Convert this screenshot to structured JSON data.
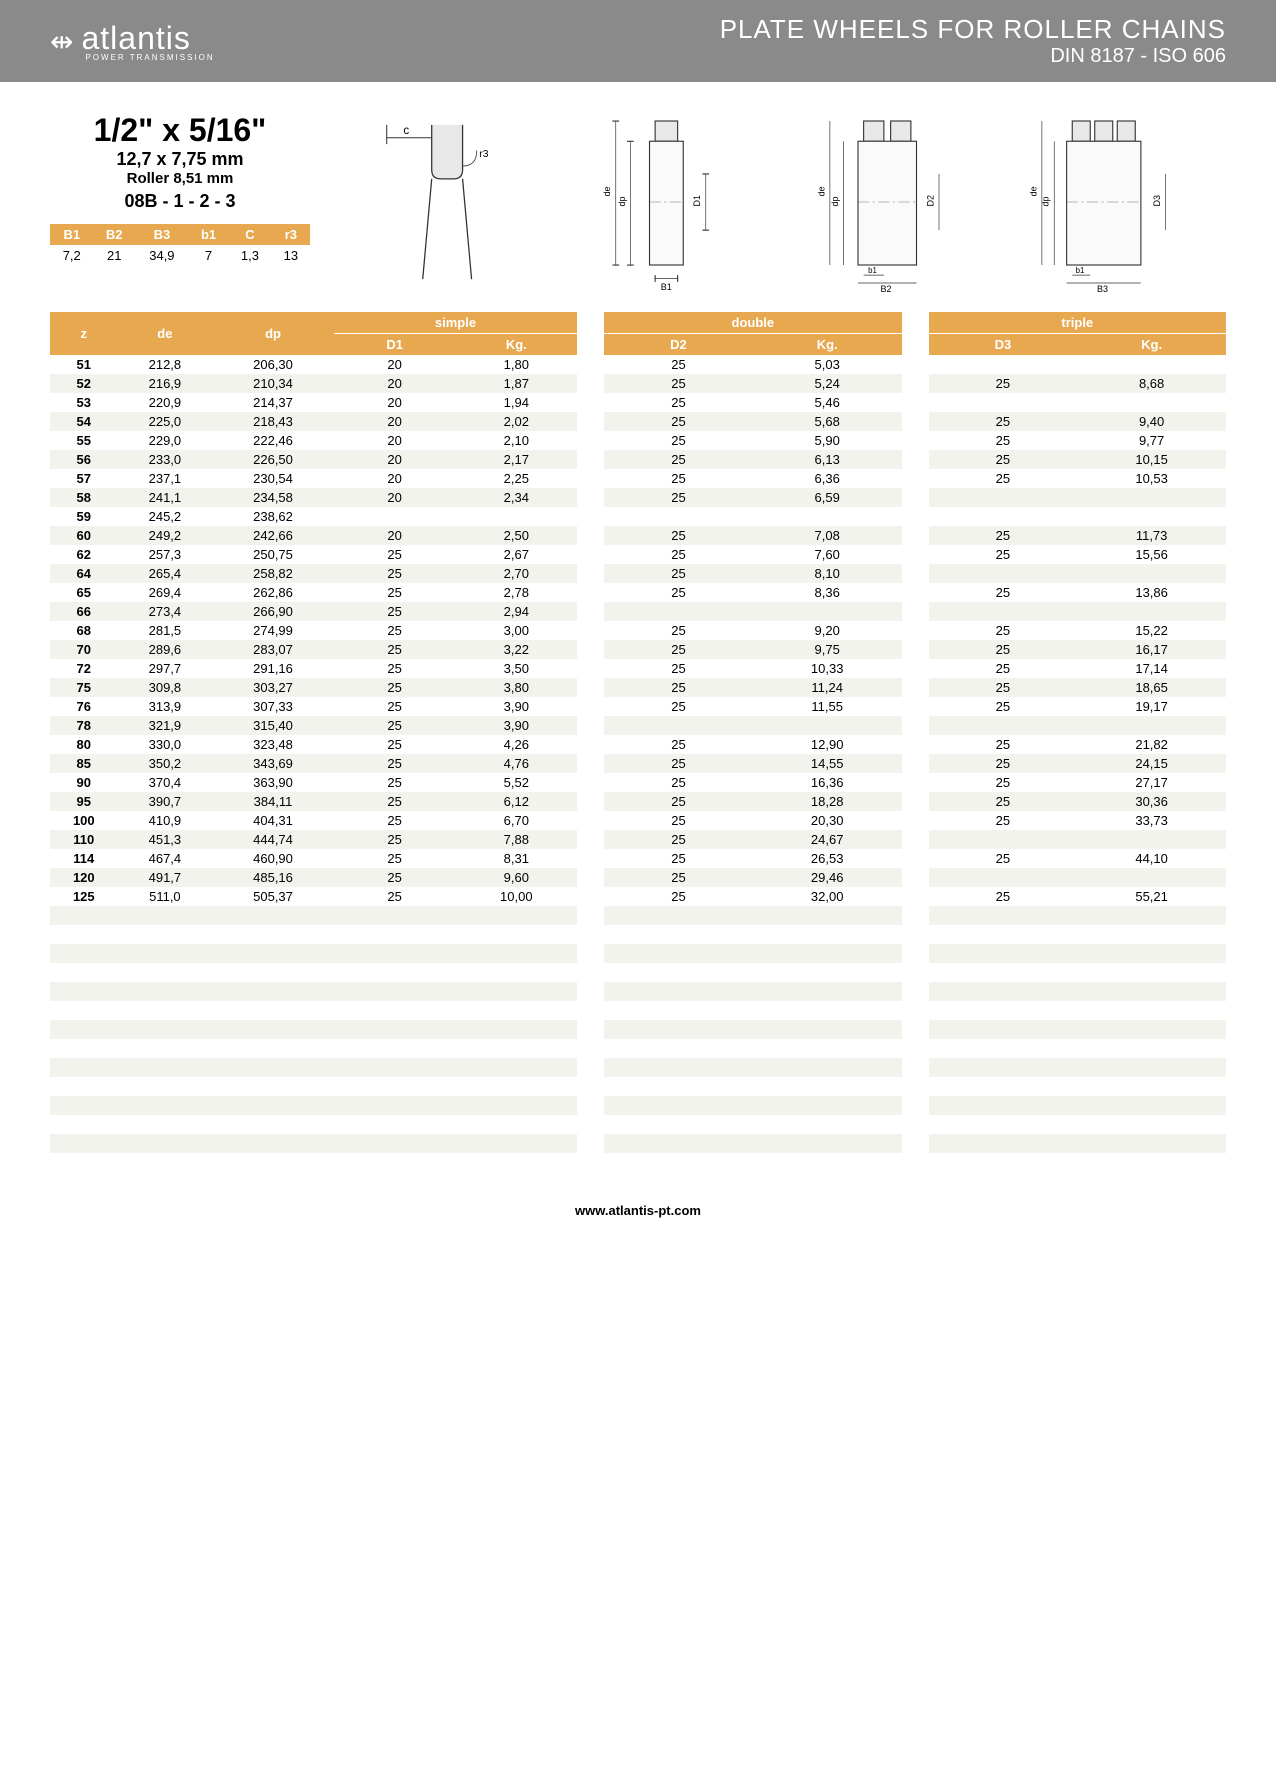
{
  "brand": {
    "name": "atlantis",
    "tagline": "POWER TRANSMISSION"
  },
  "header": {
    "title": "PLATE WHEELS FOR ROLLER CHAINS",
    "subtitle": "DIN 8187 - ISO 606"
  },
  "spec": {
    "main": "1/2\" x 5/16\"",
    "mm": "12,7 x 7,75 mm",
    "roller": "Roller 8,51 mm",
    "code": "08B - 1 - 2 - 3"
  },
  "dims": {
    "headers": [
      "B1",
      "B2",
      "B3",
      "b1",
      "C",
      "r3"
    ],
    "values": [
      "7,2",
      "21",
      "34,9",
      "7",
      "1,3",
      "13"
    ]
  },
  "diagram_labels": {
    "c": "c",
    "r3": "r3",
    "de": "de",
    "dp": "dp",
    "D1": "D1",
    "D2": "D2",
    "D3": "D3",
    "B1": "B1",
    "B2": "B2",
    "B3": "B3",
    "b1": "b1"
  },
  "table_headers": {
    "z": "z",
    "de": "de",
    "dp": "dp",
    "simple": "simple",
    "d1": "D1",
    "kg1": "Kg.",
    "double": "double",
    "d2": "D2",
    "kg2": "Kg.",
    "triple": "triple",
    "d3": "D3",
    "kg3": "Kg."
  },
  "rows": [
    {
      "z": "51",
      "de": "212,8",
      "dp": "206,30",
      "d1": "20",
      "kg1": "1,80",
      "d2": "25",
      "kg2": "5,03",
      "d3": "",
      "kg3": ""
    },
    {
      "z": "52",
      "de": "216,9",
      "dp": "210,34",
      "d1": "20",
      "kg1": "1,87",
      "d2": "25",
      "kg2": "5,24",
      "d3": "25",
      "kg3": "8,68"
    },
    {
      "z": "53",
      "de": "220,9",
      "dp": "214,37",
      "d1": "20",
      "kg1": "1,94",
      "d2": "25",
      "kg2": "5,46",
      "d3": "",
      "kg3": ""
    },
    {
      "z": "54",
      "de": "225,0",
      "dp": "218,43",
      "d1": "20",
      "kg1": "2,02",
      "d2": "25",
      "kg2": "5,68",
      "d3": "25",
      "kg3": "9,40"
    },
    {
      "z": "55",
      "de": "229,0",
      "dp": "222,46",
      "d1": "20",
      "kg1": "2,10",
      "d2": "25",
      "kg2": "5,90",
      "d3": "25",
      "kg3": "9,77"
    },
    {
      "z": "56",
      "de": "233,0",
      "dp": "226,50",
      "d1": "20",
      "kg1": "2,17",
      "d2": "25",
      "kg2": "6,13",
      "d3": "25",
      "kg3": "10,15"
    },
    {
      "z": "57",
      "de": "237,1",
      "dp": "230,54",
      "d1": "20",
      "kg1": "2,25",
      "d2": "25",
      "kg2": "6,36",
      "d3": "25",
      "kg3": "10,53"
    },
    {
      "z": "58",
      "de": "241,1",
      "dp": "234,58",
      "d1": "20",
      "kg1": "2,34",
      "d2": "25",
      "kg2": "6,59",
      "d3": "",
      "kg3": ""
    },
    {
      "z": "59",
      "de": "245,2",
      "dp": "238,62",
      "d1": "",
      "kg1": "",
      "d2": "",
      "kg2": "",
      "d3": "",
      "kg3": ""
    },
    {
      "z": "60",
      "de": "249,2",
      "dp": "242,66",
      "d1": "20",
      "kg1": "2,50",
      "d2": "25",
      "kg2": "7,08",
      "d3": "25",
      "kg3": "11,73"
    },
    {
      "z": "62",
      "de": "257,3",
      "dp": "250,75",
      "d1": "25",
      "kg1": "2,67",
      "d2": "25",
      "kg2": "7,60",
      "d3": "25",
      "kg3": "15,56"
    },
    {
      "z": "64",
      "de": "265,4",
      "dp": "258,82",
      "d1": "25",
      "kg1": "2,70",
      "d2": "25",
      "kg2": "8,10",
      "d3": "",
      "kg3": ""
    },
    {
      "z": "65",
      "de": "269,4",
      "dp": "262,86",
      "d1": "25",
      "kg1": "2,78",
      "d2": "25",
      "kg2": "8,36",
      "d3": "25",
      "kg3": "13,86"
    },
    {
      "z": "66",
      "de": "273,4",
      "dp": "266,90",
      "d1": "25",
      "kg1": "2,94",
      "d2": "",
      "kg2": "",
      "d3": "",
      "kg3": ""
    },
    {
      "z": "68",
      "de": "281,5",
      "dp": "274,99",
      "d1": "25",
      "kg1": "3,00",
      "d2": "25",
      "kg2": "9,20",
      "d3": "25",
      "kg3": "15,22"
    },
    {
      "z": "70",
      "de": "289,6",
      "dp": "283,07",
      "d1": "25",
      "kg1": "3,22",
      "d2": "25",
      "kg2": "9,75",
      "d3": "25",
      "kg3": "16,17"
    },
    {
      "z": "72",
      "de": "297,7",
      "dp": "291,16",
      "d1": "25",
      "kg1": "3,50",
      "d2": "25",
      "kg2": "10,33",
      "d3": "25",
      "kg3": "17,14"
    },
    {
      "z": "75",
      "de": "309,8",
      "dp": "303,27",
      "d1": "25",
      "kg1": "3,80",
      "d2": "25",
      "kg2": "11,24",
      "d3": "25",
      "kg3": "18,65"
    },
    {
      "z": "76",
      "de": "313,9",
      "dp": "307,33",
      "d1": "25",
      "kg1": "3,90",
      "d2": "25",
      "kg2": "11,55",
      "d3": "25",
      "kg3": "19,17"
    },
    {
      "z": "78",
      "de": "321,9",
      "dp": "315,40",
      "d1": "25",
      "kg1": "3,90",
      "d2": "",
      "kg2": "",
      "d3": "",
      "kg3": ""
    },
    {
      "z": "80",
      "de": "330,0",
      "dp": "323,48",
      "d1": "25",
      "kg1": "4,26",
      "d2": "25",
      "kg2": "12,90",
      "d3": "25",
      "kg3": "21,82"
    },
    {
      "z": "85",
      "de": "350,2",
      "dp": "343,69",
      "d1": "25",
      "kg1": "4,76",
      "d2": "25",
      "kg2": "14,55",
      "d3": "25",
      "kg3": "24,15"
    },
    {
      "z": "90",
      "de": "370,4",
      "dp": "363,90",
      "d1": "25",
      "kg1": "5,52",
      "d2": "25",
      "kg2": "16,36",
      "d3": "25",
      "kg3": "27,17"
    },
    {
      "z": "95",
      "de": "390,7",
      "dp": "384,11",
      "d1": "25",
      "kg1": "6,12",
      "d2": "25",
      "kg2": "18,28",
      "d3": "25",
      "kg3": "30,36"
    },
    {
      "z": "100",
      "de": "410,9",
      "dp": "404,31",
      "d1": "25",
      "kg1": "6,70",
      "d2": "25",
      "kg2": "20,30",
      "d3": "25",
      "kg3": "33,73"
    },
    {
      "z": "110",
      "de": "451,3",
      "dp": "444,74",
      "d1": "25",
      "kg1": "7,88",
      "d2": "25",
      "kg2": "24,67",
      "d3": "",
      "kg3": ""
    },
    {
      "z": "114",
      "de": "467,4",
      "dp": "460,90",
      "d1": "25",
      "kg1": "8,31",
      "d2": "25",
      "kg2": "26,53",
      "d3": "25",
      "kg3": "44,10"
    },
    {
      "z": "120",
      "de": "491,7",
      "dp": "485,16",
      "d1": "25",
      "kg1": "9,60",
      "d2": "25",
      "kg2": "29,46",
      "d3": "",
      "kg3": ""
    },
    {
      "z": "125",
      "de": "511,0",
      "dp": "505,37",
      "d1": "25",
      "kg1": "10,00",
      "d2": "25",
      "kg2": "32,00",
      "d3": "25",
      "kg3": "55,21"
    }
  ],
  "empty_rows": 13,
  "footer": {
    "url": "www.atlantis-pt.com"
  },
  "colors": {
    "banner": "#8a8a8a",
    "accent": "#e8a850",
    "row_odd": "#f3f3ee",
    "text": "#000000",
    "header_text": "#ffffff"
  }
}
